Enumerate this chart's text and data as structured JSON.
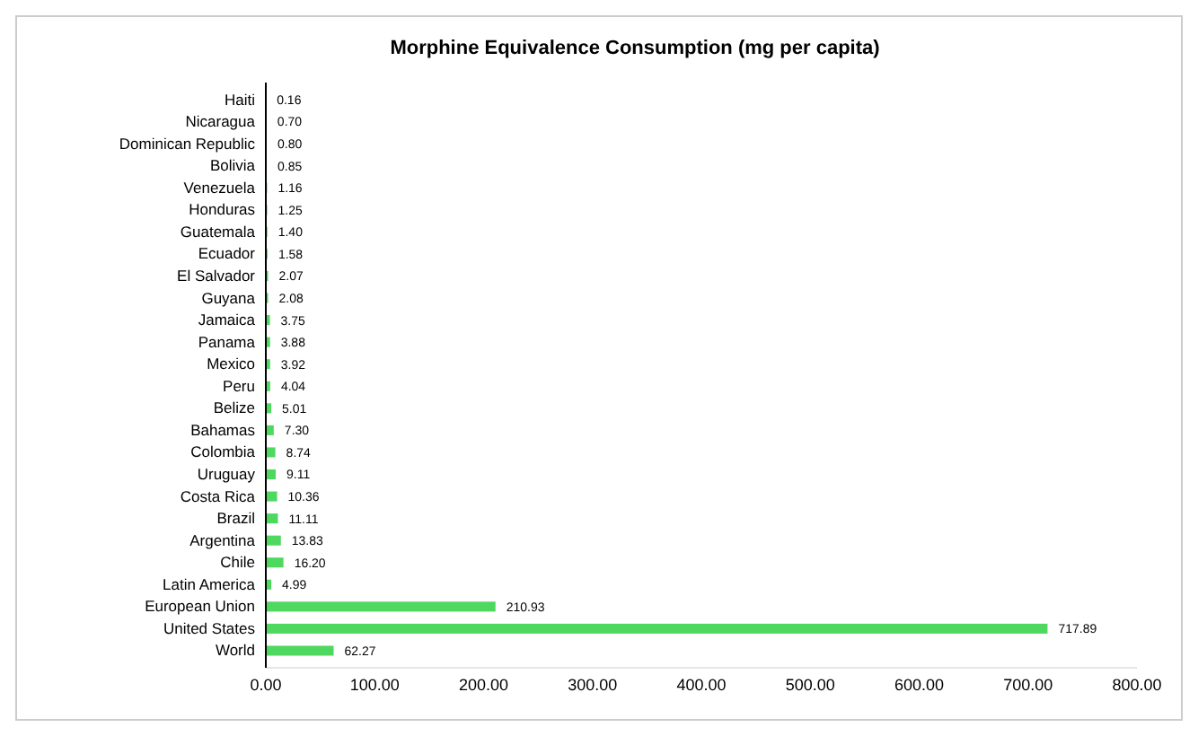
{
  "chart_data": {
    "type": "bar",
    "orientation": "horizontal",
    "title": "Morphine Equivalence Consumption (mg per capita)",
    "categories": [
      "Haiti",
      "Nicaragua",
      "Dominican Republic",
      "Bolivia",
      "Venezuela",
      "Honduras",
      "Guatemala",
      "Ecuador",
      "El Salvador",
      "Guyana",
      "Jamaica",
      "Panama",
      "Mexico",
      "Peru",
      "Belize",
      "Bahamas",
      "Colombia",
      "Uruguay",
      "Costa Rica",
      "Brazil",
      "Argentina",
      "Chile",
      "Latin America",
      "European Union",
      "United States",
      "World"
    ],
    "values": [
      0.16,
      0.7,
      0.8,
      0.85,
      1.16,
      1.25,
      1.4,
      1.58,
      2.07,
      2.08,
      3.75,
      3.88,
      3.92,
      4.04,
      5.01,
      7.3,
      8.74,
      9.11,
      10.36,
      11.11,
      13.83,
      16.2,
      4.99,
      210.93,
      717.89,
      62.27
    ],
    "value_labels": [
      "0.16",
      "0.70",
      "0.80",
      "0.85",
      "1.16",
      "1.25",
      "1.40",
      "1.58",
      "2.07",
      "2.08",
      "3.75",
      "3.88",
      "3.92",
      "4.04",
      "5.01",
      "7.30",
      "8.74",
      "9.11",
      "10.36",
      "11.11",
      "13.83",
      "16.20",
      "4.99",
      "210.93",
      "717.89",
      "62.27"
    ],
    "color": "#4fd860",
    "xlim": [
      0,
      800
    ],
    "xticks": [
      {
        "value": 0,
        "label": "0.00"
      },
      {
        "value": 100,
        "label": "100.00"
      },
      {
        "value": 200,
        "label": "200.00"
      },
      {
        "value": 300,
        "label": "300.00"
      },
      {
        "value": 400,
        "label": "400.00"
      },
      {
        "value": 500,
        "label": "500.00"
      },
      {
        "value": 600,
        "label": "600.00"
      },
      {
        "value": 700,
        "label": "700.00"
      },
      {
        "value": 800,
        "label": "800.00"
      }
    ],
    "grid": false
  }
}
